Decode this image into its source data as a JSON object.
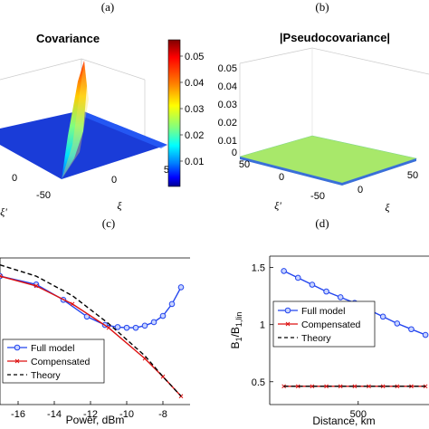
{
  "panels": {
    "a": {
      "letter": "(a)",
      "title": "Covariance",
      "ticks_left": [
        "0",
        "-50"
      ],
      "left_axis_label": "ξ'",
      "ticks_bottom": [
        "0",
        "50"
      ],
      "bottom_axis_label": "ξ",
      "colorbar_ticks": [
        "0.05",
        "0.04",
        "0.03",
        "0.02",
        "0.01"
      ],
      "colorbar_colors": [
        "#800000",
        "#ff0000",
        "#ff8000",
        "#ffff00",
        "#80ff80",
        "#00ffff",
        "#0080ff",
        "#0000ff",
        "#000090"
      ]
    },
    "b": {
      "letter": "(b)",
      "title": "|Pseudocovariance|",
      "ticks_vertical": [
        "0.05",
        "0.04",
        "0.03",
        "0.02",
        "0.01",
        "0"
      ],
      "ticks_left": [
        "50",
        "0",
        "-50"
      ],
      "left_axis_label": "ξ'",
      "ticks_bottom": [
        "0",
        "50"
      ],
      "bottom_axis_label": "ξ",
      "surface_color": "#a8e86a",
      "edge_color": "#3a6fd8"
    },
    "c": {
      "letter": "(c)"
    },
    "d": {
      "letter": "(d)"
    }
  },
  "chart_data": [
    {
      "type": "line",
      "panel": "c",
      "xlabel": "Power, dBm",
      "ylabel": "",
      "xlim": [
        -17,
        -6.5
      ],
      "ylim": [
        0,
        1.05
      ],
      "xticks": [
        -16,
        -14,
        -12,
        -10,
        -8
      ],
      "legend": "bottom-left",
      "series": [
        {
          "name": "Full model",
          "color": "#2244ee",
          "marker": "circle",
          "dash": "solid",
          "x": [
            -17,
            -15,
            -13.5,
            -12.2,
            -11.2,
            -10.5,
            -10,
            -9.5,
            -9,
            -8.5,
            -8,
            -7.5,
            -7
          ],
          "y": [
            0.92,
            0.86,
            0.75,
            0.63,
            0.57,
            0.555,
            0.55,
            0.55,
            0.565,
            0.59,
            0.635,
            0.72,
            0.84
          ]
        },
        {
          "name": "Compensated",
          "color": "#dd1111",
          "marker": "x",
          "dash": "solid",
          "x": [
            -17,
            -15,
            -13,
            -11,
            -9,
            -8,
            -7
          ],
          "y": [
            0.92,
            0.85,
            0.72,
            0.55,
            0.33,
            0.2,
            0.06
          ]
        },
        {
          "name": "Theory",
          "color": "#000000",
          "marker": "none",
          "dash": "dashed",
          "x": [
            -17,
            -15,
            -13,
            -11,
            -9,
            -8,
            -7
          ],
          "y": [
            1.0,
            0.92,
            0.78,
            0.58,
            0.35,
            0.2,
            0.06
          ]
        }
      ]
    },
    {
      "type": "line",
      "panel": "d",
      "xlabel": "Distance, km",
      "ylabel": "B",
      "ylabel_sub": "1",
      "ylabel_mid": "/B",
      "ylabel_sub2": "1,lin",
      "xlim": [
        0,
        900
      ],
      "ylim": [
        0.3,
        1.6
      ],
      "xticks": [
        500
      ],
      "yticks": [
        0.5,
        1,
        1.5
      ],
      "legend": "middle-left",
      "series": [
        {
          "name": "Full model",
          "color": "#2244ee",
          "marker": "circle",
          "dash": "solid",
          "x": [
            80,
            160,
            240,
            320,
            400,
            480,
            560,
            640,
            720,
            800,
            880
          ],
          "y": [
            1.47,
            1.41,
            1.35,
            1.29,
            1.24,
            1.19,
            1.13,
            1.07,
            1.01,
            0.96,
            0.91
          ]
        },
        {
          "name": "Compensated",
          "color": "#dd1111",
          "marker": "x",
          "dash": "solid",
          "x": [
            80,
            160,
            240,
            320,
            400,
            480,
            560,
            640,
            720,
            800,
            880
          ],
          "y": [
            0.46,
            0.46,
            0.46,
            0.46,
            0.46,
            0.46,
            0.46,
            0.46,
            0.46,
            0.46,
            0.46
          ]
        },
        {
          "name": "Theory",
          "color": "#000000",
          "marker": "none",
          "dash": "dashed",
          "x": [
            80,
            880
          ],
          "y": [
            0.46,
            0.46
          ]
        }
      ]
    }
  ]
}
